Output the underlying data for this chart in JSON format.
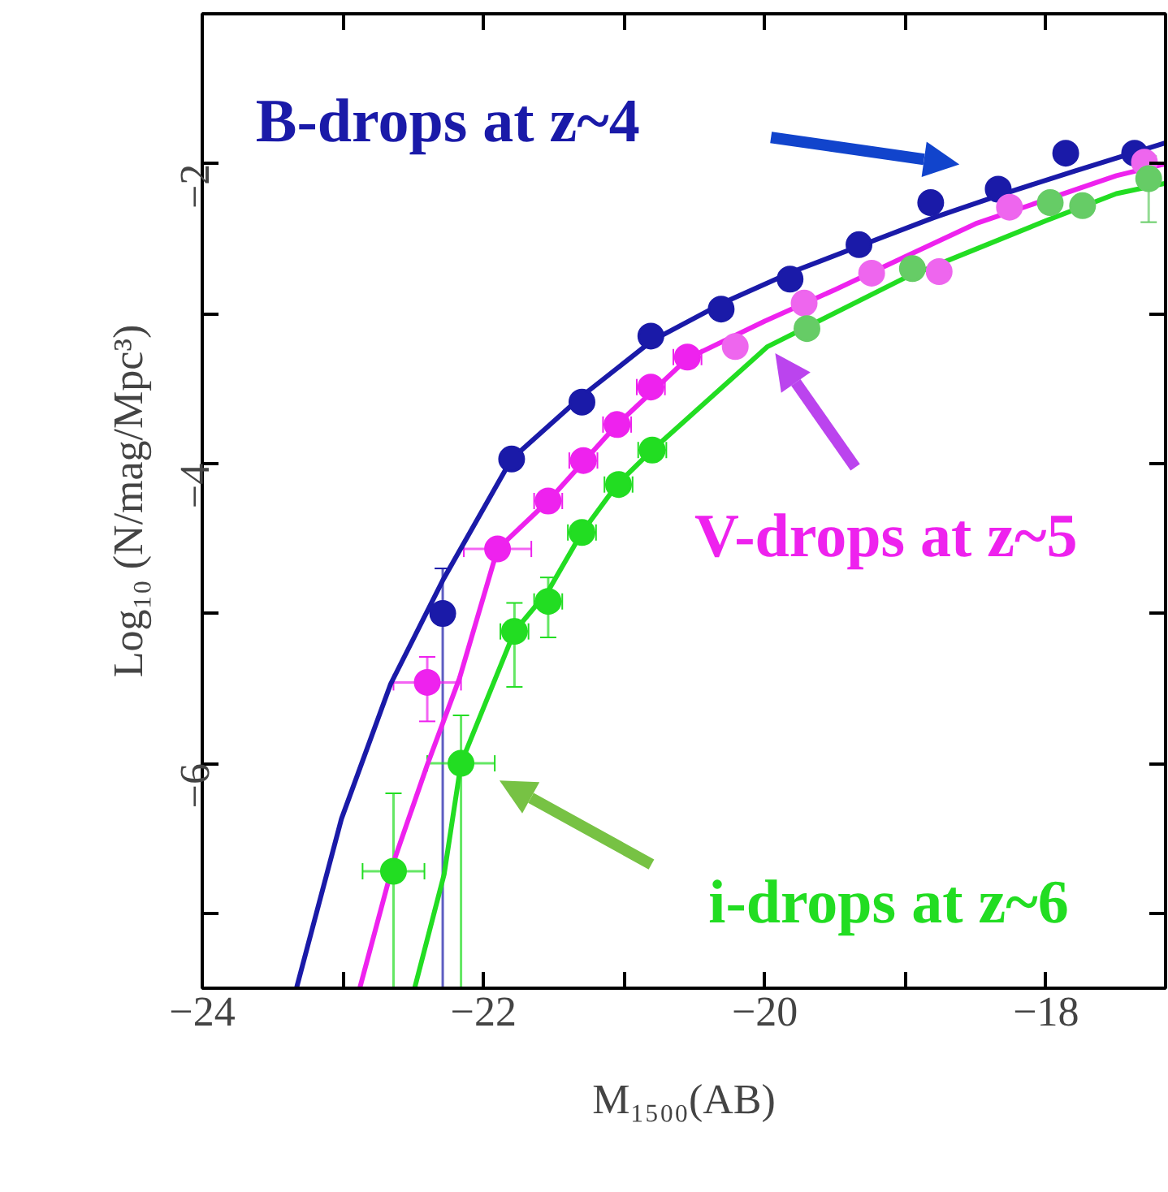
{
  "chart_data": {
    "type": "scatter",
    "xlabel": "M₁₅₀₀(AB)",
    "ylabel": "Log₁₀ (N/mag/Mpc³)",
    "xlim": [
      -24,
      -17.15
    ],
    "ylim": [
      -7.5,
      -1
    ],
    "xticks": [
      -24,
      {
        "value": -23,
        "label": null
      },
      -22,
      {
        "value": -21,
        "label": null
      },
      -20,
      {
        "value": -19,
        "label": null
      },
      -18
    ],
    "yticks": [
      {
        "value": -7,
        "label": null
      },
      -6,
      {
        "value": -5,
        "label": null
      },
      -4,
      {
        "value": -3,
        "label": null
      },
      -2
    ],
    "grid": false,
    "marker": "circle",
    "series": [
      {
        "type": "line",
        "marker": "none",
        "color": "#1a1aa8",
        "x": [
          -23.33,
          -23.01,
          -22.66,
          -22.29,
          -21.8,
          -21.3,
          -20.8,
          -20.3,
          -19.8,
          -19.3,
          -18.8,
          -18.3,
          -17.8,
          -17.15
        ],
        "values": [
          -7.5,
          -6.37,
          -5.47,
          -4.78,
          -3.97,
          -3.55,
          -3.18,
          -2.93,
          -2.72,
          -2.54,
          -2.36,
          -2.2,
          -2.05,
          -1.86
        ]
      },
      {
        "type": "line",
        "marker": "none",
        "color": "#ee22ee",
        "x": [
          -22.88,
          -22.64,
          -22.4,
          -22.17,
          -21.9,
          -21.54,
          -21.05,
          -20.55,
          -20.0,
          -19.5,
          -19.0,
          -18.5,
          -17.5,
          -17.15
        ],
        "values": [
          -7.5,
          -6.66,
          -6.01,
          -5.43,
          -4.57,
          -4.25,
          -3.74,
          -3.3,
          -3.05,
          -2.84,
          -2.62,
          -2.4,
          -2.08,
          -2.0
        ]
      },
      {
        "type": "line",
        "marker": "none",
        "color": "#22dd22",
        "x": [
          -22.49,
          -22.28,
          -22.16,
          -21.78,
          -21.54,
          -21.3,
          -21.05,
          -20.8,
          -19.98,
          -19.0,
          -18.5,
          -18.0,
          -17.5,
          -17.15
        ],
        "values": [
          -7.5,
          -6.74,
          -6.0,
          -5.12,
          -4.85,
          -4.46,
          -4.14,
          -3.91,
          -3.22,
          -2.76,
          -2.57,
          -2.38,
          -2.2,
          -2.13
        ]
      },
      {
        "name": "B-drops at z~4",
        "color": "#1a1aa8",
        "x": [
          -22.29,
          -21.8,
          -21.3,
          -20.81,
          -20.31,
          -19.82,
          -19.33,
          -18.82,
          -18.34,
          -17.86,
          -17.37
        ],
        "values": [
          -5.0,
          -3.97,
          -3.59,
          -3.15,
          -2.97,
          -2.77,
          -2.54,
          -2.26,
          -2.17,
          -1.93,
          -1.93
        ],
        "errors": [
          [
            -7.5,
            -4.7
          ],
          null,
          null,
          null,
          null,
          null,
          null,
          null,
          null,
          null,
          null
        ]
      },
      {
        "name": "V-drops at z~5",
        "color": "#ee22ee",
        "x": [
          -22.4,
          -21.9,
          -21.54,
          -21.29,
          -21.05,
          -20.81,
          -20.55
        ],
        "values": [
          -5.46,
          -4.57,
          -4.25,
          -3.98,
          -3.74,
          -3.49,
          -3.29
        ],
        "xerrors": [
          0.24,
          0.24,
          0.1,
          0.1,
          0.1,
          0.1,
          0.1
        ],
        "errors": [
          [
            -5.72,
            -5.29
          ],
          null,
          null,
          null,
          null,
          null,
          null
        ]
      },
      {
        "color": "#ee66ee",
        "x": [
          -20.21,
          -19.72,
          -19.24,
          -18.76,
          -18.26,
          -17.3
        ],
        "values": [
          -3.22,
          -2.93,
          -2.73,
          -2.72,
          -2.29,
          -1.99
        ]
      },
      {
        "name": "i-drops at z~6",
        "color": "#22dd22",
        "x": [
          -22.64,
          -22.16,
          -21.78,
          -21.54,
          -21.3,
          -21.04,
          -20.8
        ],
        "values": [
          -6.72,
          -6.0,
          -5.12,
          -4.92,
          -4.46,
          -4.14,
          -3.91
        ],
        "xerrors": [
          0.22,
          0.24,
          0.1,
          0.1,
          0.1,
          0.1,
          0.1
        ],
        "errors": [
          [
            -7.5,
            -6.2
          ],
          [
            -7.5,
            -5.68
          ],
          [
            -5.49,
            -4.93
          ],
          [
            -5.16,
            -4.76
          ],
          null,
          null,
          null
        ]
      },
      {
        "color": "#66cc66",
        "x": [
          -19.7,
          -18.95,
          -17.97,
          -17.74,
          -17.27
        ],
        "values": [
          -3.1,
          -2.7,
          -2.26,
          -2.28,
          -2.1
        ],
        "errors": [
          null,
          null,
          null,
          null,
          [
            -2.39,
            -1.95
          ]
        ]
      }
    ]
  }
}
